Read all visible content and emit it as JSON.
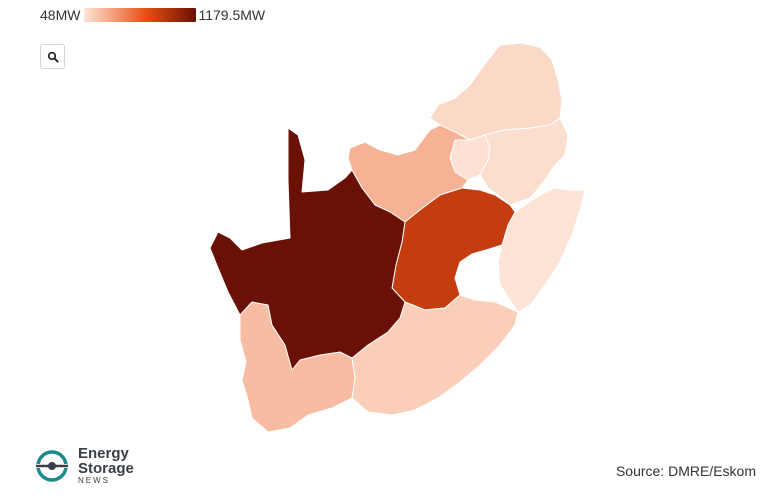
{
  "legend": {
    "min_label": "48MW",
    "max_label": "1179.5MW",
    "min_value": 48,
    "max_value": 1179.5,
    "color_low": "#fde4d6",
    "color_high": "#6b1004"
  },
  "zoom_button": {
    "icon": "search-icon"
  },
  "regions": [
    {
      "id": "northern-cape",
      "value": 1179.5
    },
    {
      "id": "free-state",
      "value": 820
    },
    {
      "id": "north-west",
      "value": 260
    },
    {
      "id": "western-cape",
      "value": 215
    },
    {
      "id": "eastern-cape",
      "value": 140
    },
    {
      "id": "limpopo",
      "value": 95
    },
    {
      "id": "mpumalanga",
      "value": 75
    },
    {
      "id": "gauteng",
      "value": 60
    },
    {
      "id": "kwazulu-natal",
      "value": 48
    }
  ],
  "logo": {
    "line1": "Energy",
    "line2": "Storage",
    "line3": "NEWS",
    "accent_color": "#1a8a8f"
  },
  "source": "Source: DMRE/Eskom"
}
